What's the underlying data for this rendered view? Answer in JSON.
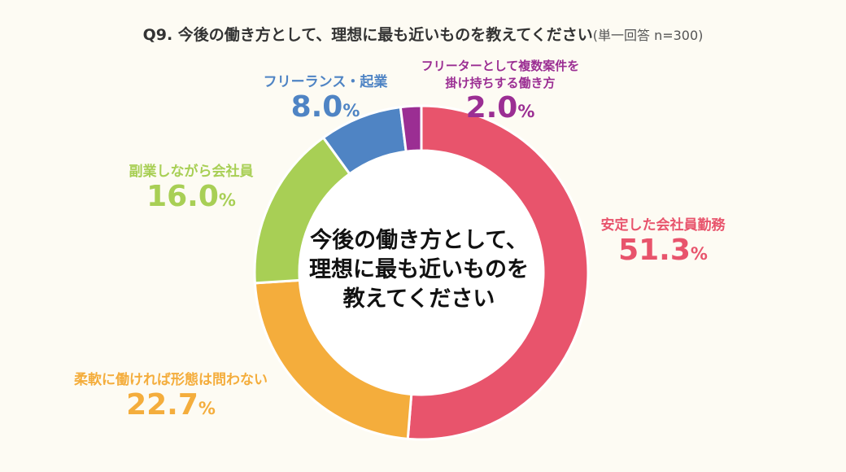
{
  "title": {
    "main": "Q9. 今後の働き方として、理想に最も近いものを教えてください",
    "note": "(単一回答 n=300)"
  },
  "center_label": [
    "今後の働き方として、",
    "理想に最も近いものを",
    "教えてください"
  ],
  "chart_data": {
    "type": "pie",
    "donut": true,
    "unit": "%",
    "categories": [
      "安定した会社員勤務",
      "柔軟に働ければ形態は問わない",
      "副業しながら会社員",
      "フリーランス・起業",
      "フリーターとして複数案件を掛け持ちする働き方"
    ],
    "category_lines": [
      [
        "安定した会社員勤務"
      ],
      [
        "柔軟に働ければ形態は問わない"
      ],
      [
        "副業しながら会社員"
      ],
      [
        "フリーランス・起業"
      ],
      [
        "フリーターとして複数案件を",
        "掛け持ちする働き方"
      ]
    ],
    "values": [
      51.3,
      22.7,
      16.0,
      8.0,
      2.0
    ],
    "value_labels": [
      "51.3",
      "22.7",
      "16.0",
      "8.0",
      "2.0"
    ],
    "colors": [
      "#e8546c",
      "#f4ad3c",
      "#a8cf55",
      "#4f84c4",
      "#9b2e93"
    ],
    "start": "12 o'clock",
    "direction": "clockwise"
  }
}
